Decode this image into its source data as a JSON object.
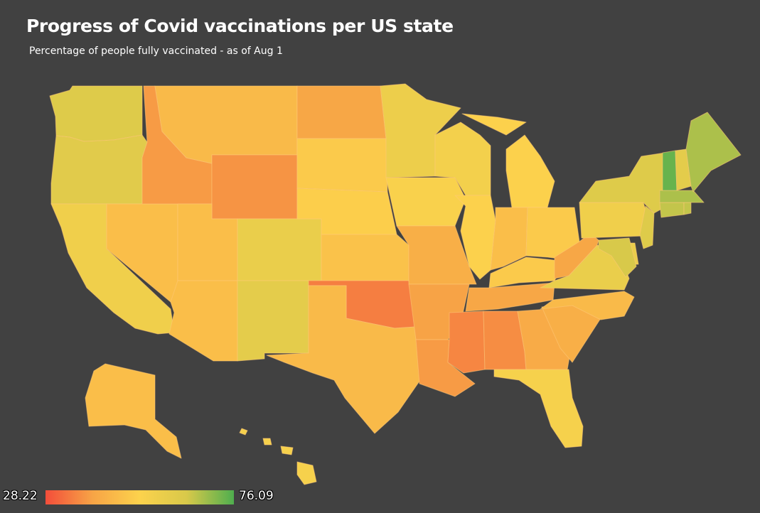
{
  "title": "Progress of Covid vaccinations per US state",
  "subtitle": "Percentage of people fully vaccinated - as of Aug 1",
  "legend": {
    "min": "28.22",
    "max": "76.09",
    "colors": [
      "#f34d3a",
      "#f7a446",
      "#fcd24c",
      "#d8c94a",
      "#4fae4e"
    ]
  },
  "map_data": {
    "type": "choropleth",
    "region": "United States",
    "metric": "Percentage of people fully vaccinated",
    "domain": [
      28.22,
      76.09
    ],
    "states": [
      {
        "name": "WA",
        "value": 62
      },
      {
        "name": "OR",
        "value": 61
      },
      {
        "name": "CA",
        "value": 56
      },
      {
        "name": "NV",
        "value": 47
      },
      {
        "name": "ID",
        "value": 39
      },
      {
        "name": "MT",
        "value": 46
      },
      {
        "name": "WY",
        "value": 38
      },
      {
        "name": "UT",
        "value": 47
      },
      {
        "name": "CO",
        "value": 58
      },
      {
        "name": "AZ",
        "value": 47
      },
      {
        "name": "NM",
        "value": 60
      },
      {
        "name": "ND",
        "value": 41
      },
      {
        "name": "SD",
        "value": 50
      },
      {
        "name": "NE",
        "value": 51
      },
      {
        "name": "KS",
        "value": 48
      },
      {
        "name": "OK",
        "value": 35
      },
      {
        "name": "TX",
        "value": 46
      },
      {
        "name": "MN",
        "value": 57
      },
      {
        "name": "IA",
        "value": 53
      },
      {
        "name": "MO",
        "value": 43
      },
      {
        "name": "AR",
        "value": 40
      },
      {
        "name": "LA",
        "value": 39
      },
      {
        "name": "WI",
        "value": 55
      },
      {
        "name": "IL",
        "value": 52
      },
      {
        "name": "MI",
        "value": 52
      },
      {
        "name": "IN",
        "value": 47
      },
      {
        "name": "OH",
        "value": 50
      },
      {
        "name": "KY",
        "value": 50
      },
      {
        "name": "TN",
        "value": 41
      },
      {
        "name": "MS",
        "value": 36
      },
      {
        "name": "AL",
        "value": 37
      },
      {
        "name": "GA",
        "value": 42
      },
      {
        "name": "FL",
        "value": 54
      },
      {
        "name": "SC",
        "value": 43
      },
      {
        "name": "NC",
        "value": 46
      },
      {
        "name": "VA",
        "value": 58
      },
      {
        "name": "WV",
        "value": 41
      },
      {
        "name": "PA",
        "value": 56
      },
      {
        "name": "NY",
        "value": 62
      },
      {
        "name": "VT",
        "value": 74
      },
      {
        "name": "NH",
        "value": 60
      },
      {
        "name": "ME",
        "value": 68
      },
      {
        "name": "MA",
        "value": 68
      },
      {
        "name": "CT",
        "value": 66
      },
      {
        "name": "RI",
        "value": 66
      },
      {
        "name": "NJ",
        "value": 62
      },
      {
        "name": "DE",
        "value": 58
      },
      {
        "name": "MD",
        "value": 64
      },
      {
        "name": "AK",
        "value": 47
      },
      {
        "name": "HI",
        "value": 54
      }
    ]
  }
}
